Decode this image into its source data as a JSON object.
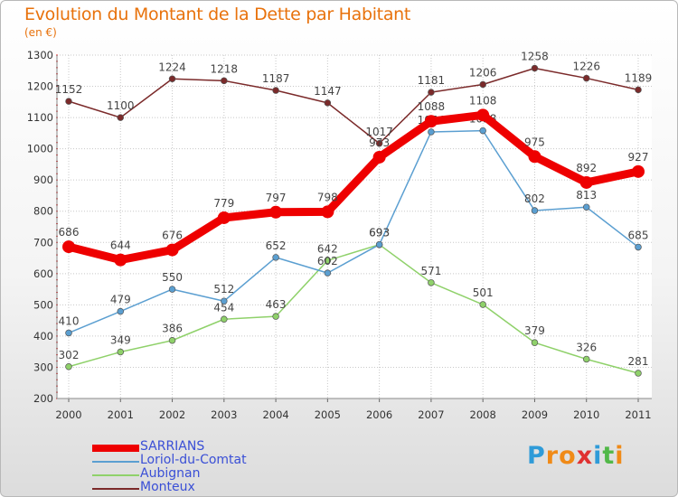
{
  "header": {
    "title": "Evolution du Montant de la Dette par Habitant",
    "unit": "(en €)"
  },
  "legend": [
    {
      "label": "SARRIANS"
    },
    {
      "label": "Loriol-du-Comtat"
    },
    {
      "label": "Aubignan"
    },
    {
      "label": "Monteux"
    }
  ],
  "logo": {
    "letters": [
      "P",
      "r",
      "o",
      "x",
      "i",
      "t",
      "i"
    ],
    "colors": [
      "#2f9bd8",
      "#f08a17",
      "#f08a17",
      "#e03131",
      "#2f9bd8",
      "#52b848",
      "#f08a17"
    ]
  },
  "chart_data": {
    "type": "line",
    "x": [
      "2000",
      "2001",
      "2002",
      "2003",
      "2004",
      "2005",
      "2006",
      "2007",
      "2008",
      "2009",
      "2010",
      "2011"
    ],
    "ylim": [
      200,
      1300
    ],
    "yticks": [
      "200",
      "300",
      "400",
      "500",
      "600",
      "700",
      "800",
      "900",
      "1000",
      "1100",
      "1200",
      "1300"
    ],
    "grid": true,
    "legend_position": "bottom-left",
    "series": [
      {
        "name": "Monteux",
        "color": "#7b2a2a",
        "values": [
          1152,
          1100,
          1224,
          1218,
          1187,
          1147,
          1017,
          1181,
          1206,
          1258,
          1226,
          1189
        ],
        "labels": [
          "1152",
          "1100",
          "1224",
          "1218",
          "1187",
          "1147",
          "1017",
          "1181",
          "1206",
          "1258",
          "1226",
          "1189"
        ]
      },
      {
        "name": "Aubignan",
        "color": "#8fd16a",
        "values": [
          302,
          349,
          386,
          454,
          463,
          642,
          693,
          571,
          501,
          379,
          326,
          281
        ],
        "labels": [
          "302",
          "349",
          "386",
          "454",
          "463",
          "642",
          "693",
          "571",
          "501",
          "379",
          "326",
          "281"
        ]
      },
      {
        "name": "Loriol-du-Comtat",
        "color": "#5b9fd1",
        "values": [
          410,
          479,
          550,
          512,
          652,
          602,
          693,
          1054,
          1058,
          802,
          813,
          685
        ],
        "labels": [
          "410",
          "479",
          "550",
          "512",
          "652",
          "602",
          "693",
          "1054",
          "1058",
          "802",
          "813",
          "685"
        ]
      },
      {
        "name": "SARRIANS",
        "color": "#ee0000",
        "values": [
          686,
          644,
          676,
          779,
          797,
          798,
          973,
          1088,
          1108,
          975,
          892,
          927
        ],
        "labels": [
          "686",
          "644",
          "676",
          "779",
          "797",
          "798",
          "973",
          "1088",
          "1108",
          "975",
          "892",
          "927"
        ]
      }
    ]
  }
}
